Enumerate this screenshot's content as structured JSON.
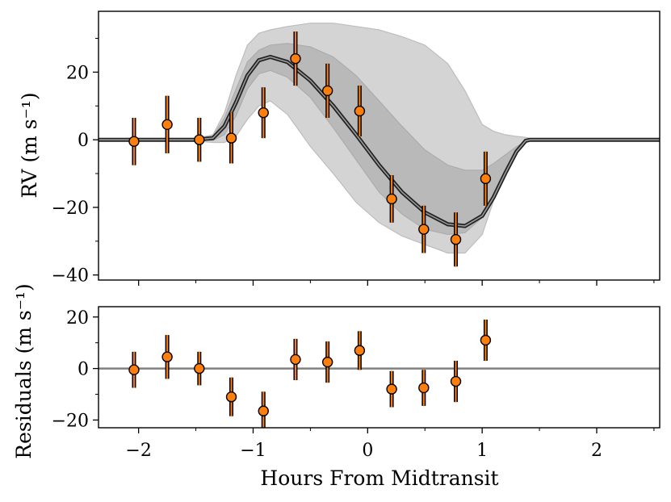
{
  "chart_data": [
    {
      "type": "scatter",
      "panel": "top",
      "title": "",
      "xlabel": "",
      "ylabel": "RV (m s⁻¹)",
      "xlim": [
        -2.35,
        2.55
      ],
      "ylim": [
        -41.5,
        38
      ],
      "xticks": [
        -2,
        -1,
        0,
        1,
        2
      ],
      "yticks": [
        -40,
        -20,
        0,
        20
      ],
      "ytick_labels": [
        "−40",
        "−20",
        "0",
        "20"
      ],
      "grid": false,
      "colors": {
        "points": "#ff7f0e",
        "errorbar_outer": "#000000",
        "model": "#444444",
        "band_outer": "#d4d4d4",
        "band_inner": "#b9b9b9"
      },
      "points": {
        "x": [
          -2.04,
          -1.75,
          -1.47,
          -1.19,
          -0.91,
          -0.63,
          -0.35,
          -0.07,
          0.21,
          0.49,
          0.77,
          1.03
        ],
        "y": [
          -0.5,
          4.5,
          0.0,
          0.5,
          8.0,
          24.0,
          14.5,
          8.5,
          -17.5,
          -26.5,
          -29.5,
          -11.5
        ],
        "yerr": [
          7.0,
          8.5,
          6.5,
          7.5,
          7.5,
          8.0,
          8.0,
          7.5,
          7.0,
          7.0,
          8.0,
          8.0
        ]
      },
      "model": {
        "x": [
          -2.35,
          -1.5,
          -1.35,
          -1.25,
          -1.15,
          -1.05,
          -0.95,
          -0.85,
          -0.7,
          -0.5,
          -0.3,
          -0.1,
          0.1,
          0.3,
          0.5,
          0.7,
          0.85,
          1.0,
          1.1,
          1.2,
          1.3,
          1.38,
          1.42,
          2.55
        ],
        "y": [
          0,
          0,
          0.5,
          4.0,
          11.0,
          19.0,
          23.5,
          24.5,
          23.0,
          17.5,
          10.0,
          1.5,
          -7.5,
          -15.5,
          -21.5,
          -25.0,
          -25.5,
          -22.5,
          -17.0,
          -10.0,
          -3.5,
          -0.3,
          0,
          0
        ]
      },
      "band_outer": {
        "x": [
          -2.35,
          -1.5,
          -1.35,
          -1.25,
          -1.15,
          -1.05,
          -0.95,
          -0.85,
          -0.7,
          -0.5,
          -0.3,
          -0.1,
          0.1,
          0.3,
          0.5,
          0.7,
          0.85,
          1.0,
          1.1,
          1.2,
          1.3,
          1.38,
          1.42,
          2.55
        ],
        "upper": [
          0.4,
          0.4,
          1.5,
          8.0,
          19.0,
          28.0,
          31.5,
          32.5,
          33.5,
          34.5,
          34.5,
          33.5,
          32.5,
          30.5,
          28.0,
          22.5,
          14.5,
          4.5,
          2.5,
          1.5,
          1.0,
          0.7,
          0.4,
          0.4
        ],
        "lower": [
          -0.4,
          -0.4,
          -0.8,
          -0.8,
          1.0,
          6.0,
          10.0,
          11.5,
          7.5,
          -2.0,
          -10.0,
          -18.5,
          -24.5,
          -28.5,
          -31.0,
          -33.5,
          -33.5,
          -28.0,
          -18.0,
          -9.0,
          -3.0,
          -0.7,
          -0.4,
          -0.4
        ]
      },
      "band_inner": {
        "x": [
          -2.35,
          -1.5,
          -1.35,
          -1.25,
          -1.15,
          -1.05,
          -0.95,
          -0.85,
          -0.7,
          -0.5,
          -0.3,
          -0.1,
          0.1,
          0.3,
          0.5,
          0.7,
          0.85,
          1.0,
          1.1,
          1.2,
          1.3,
          1.38,
          1.42,
          2.55
        ],
        "upper": [
          0.2,
          0.2,
          1.0,
          6.5,
          15.0,
          23.0,
          26.5,
          28.0,
          28.5,
          27.5,
          24.5,
          19.0,
          11.5,
          4.0,
          -3.0,
          -7.5,
          -9.0,
          -9.0,
          -7.0,
          -4.5,
          -2.0,
          -0.5,
          -0.2,
          -0.2
        ],
        "lower": [
          -0.2,
          -0.2,
          -0.2,
          1.5,
          7.0,
          15.0,
          19.5,
          20.5,
          18.5,
          12.5,
          3.5,
          -6.0,
          -15.5,
          -22.0,
          -26.5,
          -28.0,
          -27.5,
          -23.0,
          -16.5,
          -9.5,
          -3.5,
          -0.8,
          -0.2,
          -0.2
        ]
      }
    },
    {
      "type": "scatter",
      "panel": "bottom",
      "title": "",
      "xlabel": "Hours From Midtransit",
      "ylabel": "Residuals (m s⁻¹)",
      "xlim": [
        -2.35,
        2.55
      ],
      "ylim": [
        -23,
        24
      ],
      "xticks": [
        -2,
        -1,
        0,
        1,
        2
      ],
      "xtick_labels": [
        "−2",
        "−1",
        "0",
        "1",
        "2"
      ],
      "yticks": [
        -20,
        0,
        20
      ],
      "ytick_labels": [
        "−20",
        "0",
        "20"
      ],
      "zero_line": 0,
      "grid": false,
      "colors": {
        "points": "#ff7f0e",
        "errorbar_outer": "#000000",
        "zero_line": "#808080"
      },
      "points": {
        "x": [
          -2.04,
          -1.75,
          -1.47,
          -1.19,
          -0.91,
          -0.63,
          -0.35,
          -0.07,
          0.21,
          0.49,
          0.77,
          1.03
        ],
        "y": [
          -0.5,
          4.5,
          0.0,
          -11.0,
          -16.5,
          3.5,
          2.5,
          7.0,
          -8.0,
          -7.5,
          -5.0,
          11.0
        ],
        "yerr": [
          7.0,
          8.5,
          6.5,
          7.5,
          7.5,
          8.0,
          8.0,
          7.5,
          7.0,
          7.0,
          8.0,
          8.0
        ]
      }
    }
  ]
}
